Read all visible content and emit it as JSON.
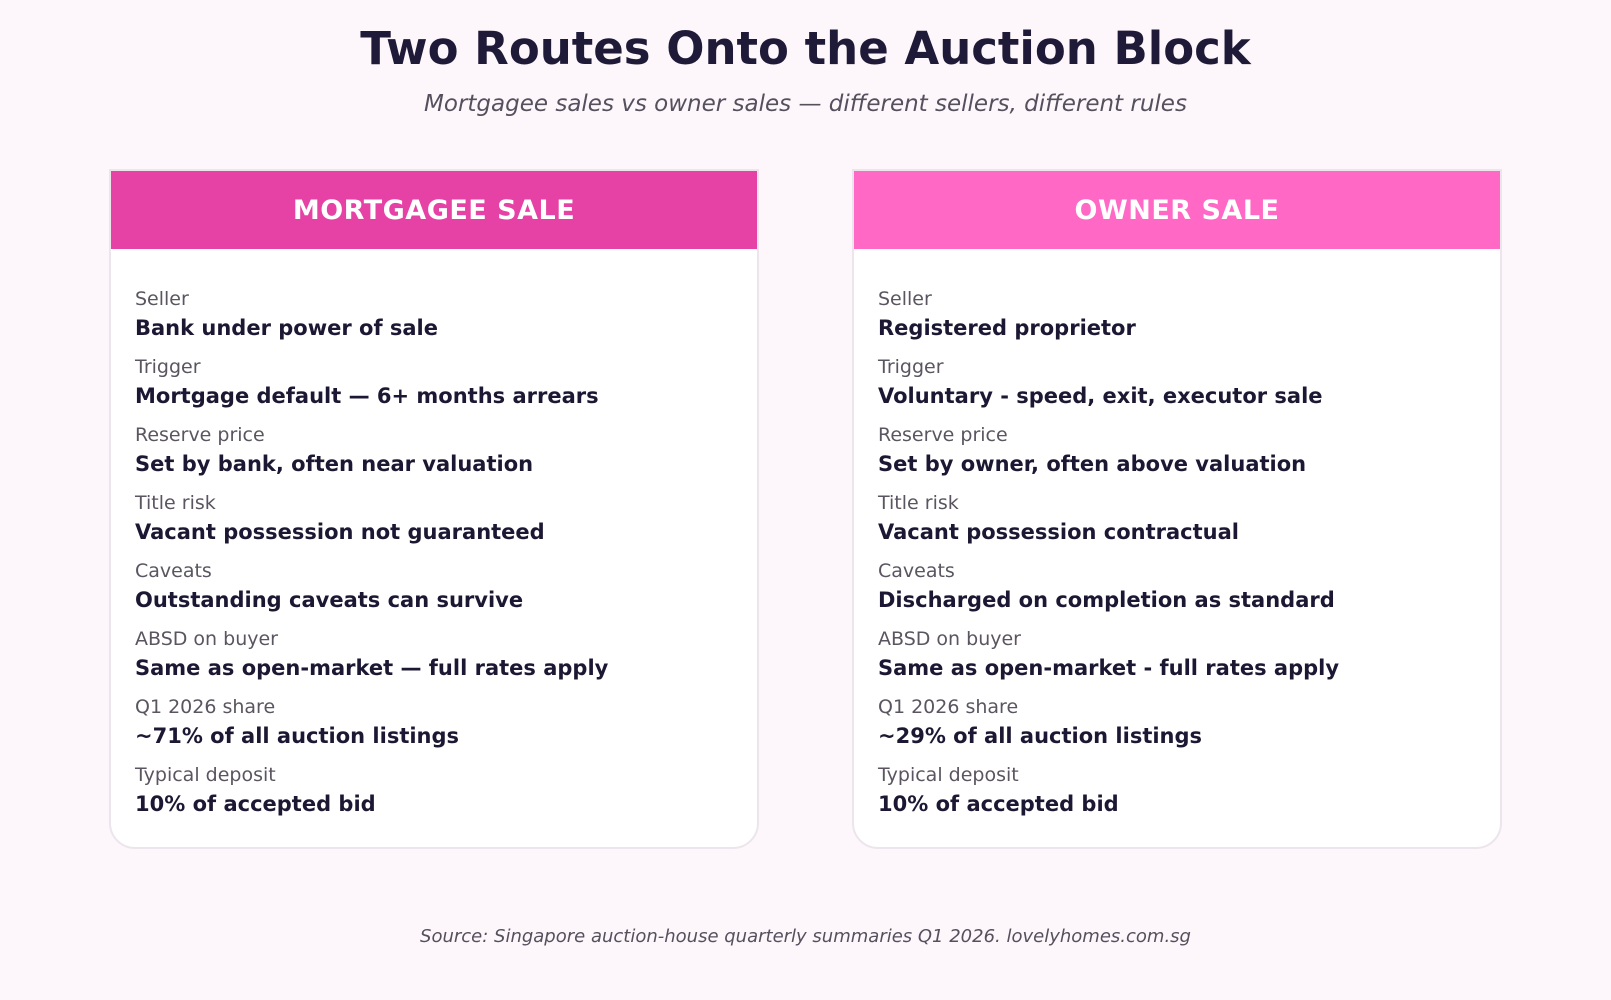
{
  "title": "Two Routes Onto the Auction Block",
  "subtitle": "Mortgagee sales vs owner sales — different sellers, different rules",
  "colors": {
    "mortgagee_header": "#e641a5",
    "owner_header": "#ff68c5"
  },
  "cards": [
    {
      "header": "MORTGAGEE SALE",
      "rows": [
        {
          "label": "Seller",
          "value": "Bank under power of sale"
        },
        {
          "label": "Trigger",
          "value": "Mortgage default — 6+ months arrears"
        },
        {
          "label": "Reserve price",
          "value": "Set by bank, often near valuation"
        },
        {
          "label": "Title risk",
          "value": "Vacant possession not guaranteed"
        },
        {
          "label": "Caveats",
          "value": "Outstanding caveats can survive"
        },
        {
          "label": "ABSD on buyer",
          "value": "Same as open-market — full rates apply"
        },
        {
          "label": "Q1 2026 share",
          "value": "~71% of all auction listings"
        },
        {
          "label": "Typical deposit",
          "value": "10% of accepted bid"
        }
      ]
    },
    {
      "header": "OWNER SALE",
      "rows": [
        {
          "label": "Seller",
          "value": "Registered proprietor"
        },
        {
          "label": "Trigger",
          "value": "Voluntary - speed, exit, executor sale"
        },
        {
          "label": "Reserve price",
          "value": "Set by owner, often above valuation"
        },
        {
          "label": "Title risk",
          "value": "Vacant possession contractual"
        },
        {
          "label": "Caveats",
          "value": "Discharged on completion as standard"
        },
        {
          "label": "ABSD on buyer",
          "value": "Same as open-market - full rates apply"
        },
        {
          "label": "Q1 2026 share",
          "value": "~29% of all auction listings"
        },
        {
          "label": "Typical deposit",
          "value": "10% of accepted bid"
        }
      ]
    }
  ],
  "source": "Source: Singapore auction-house quarterly summaries Q1 2026. lovelyhomes.com.sg"
}
